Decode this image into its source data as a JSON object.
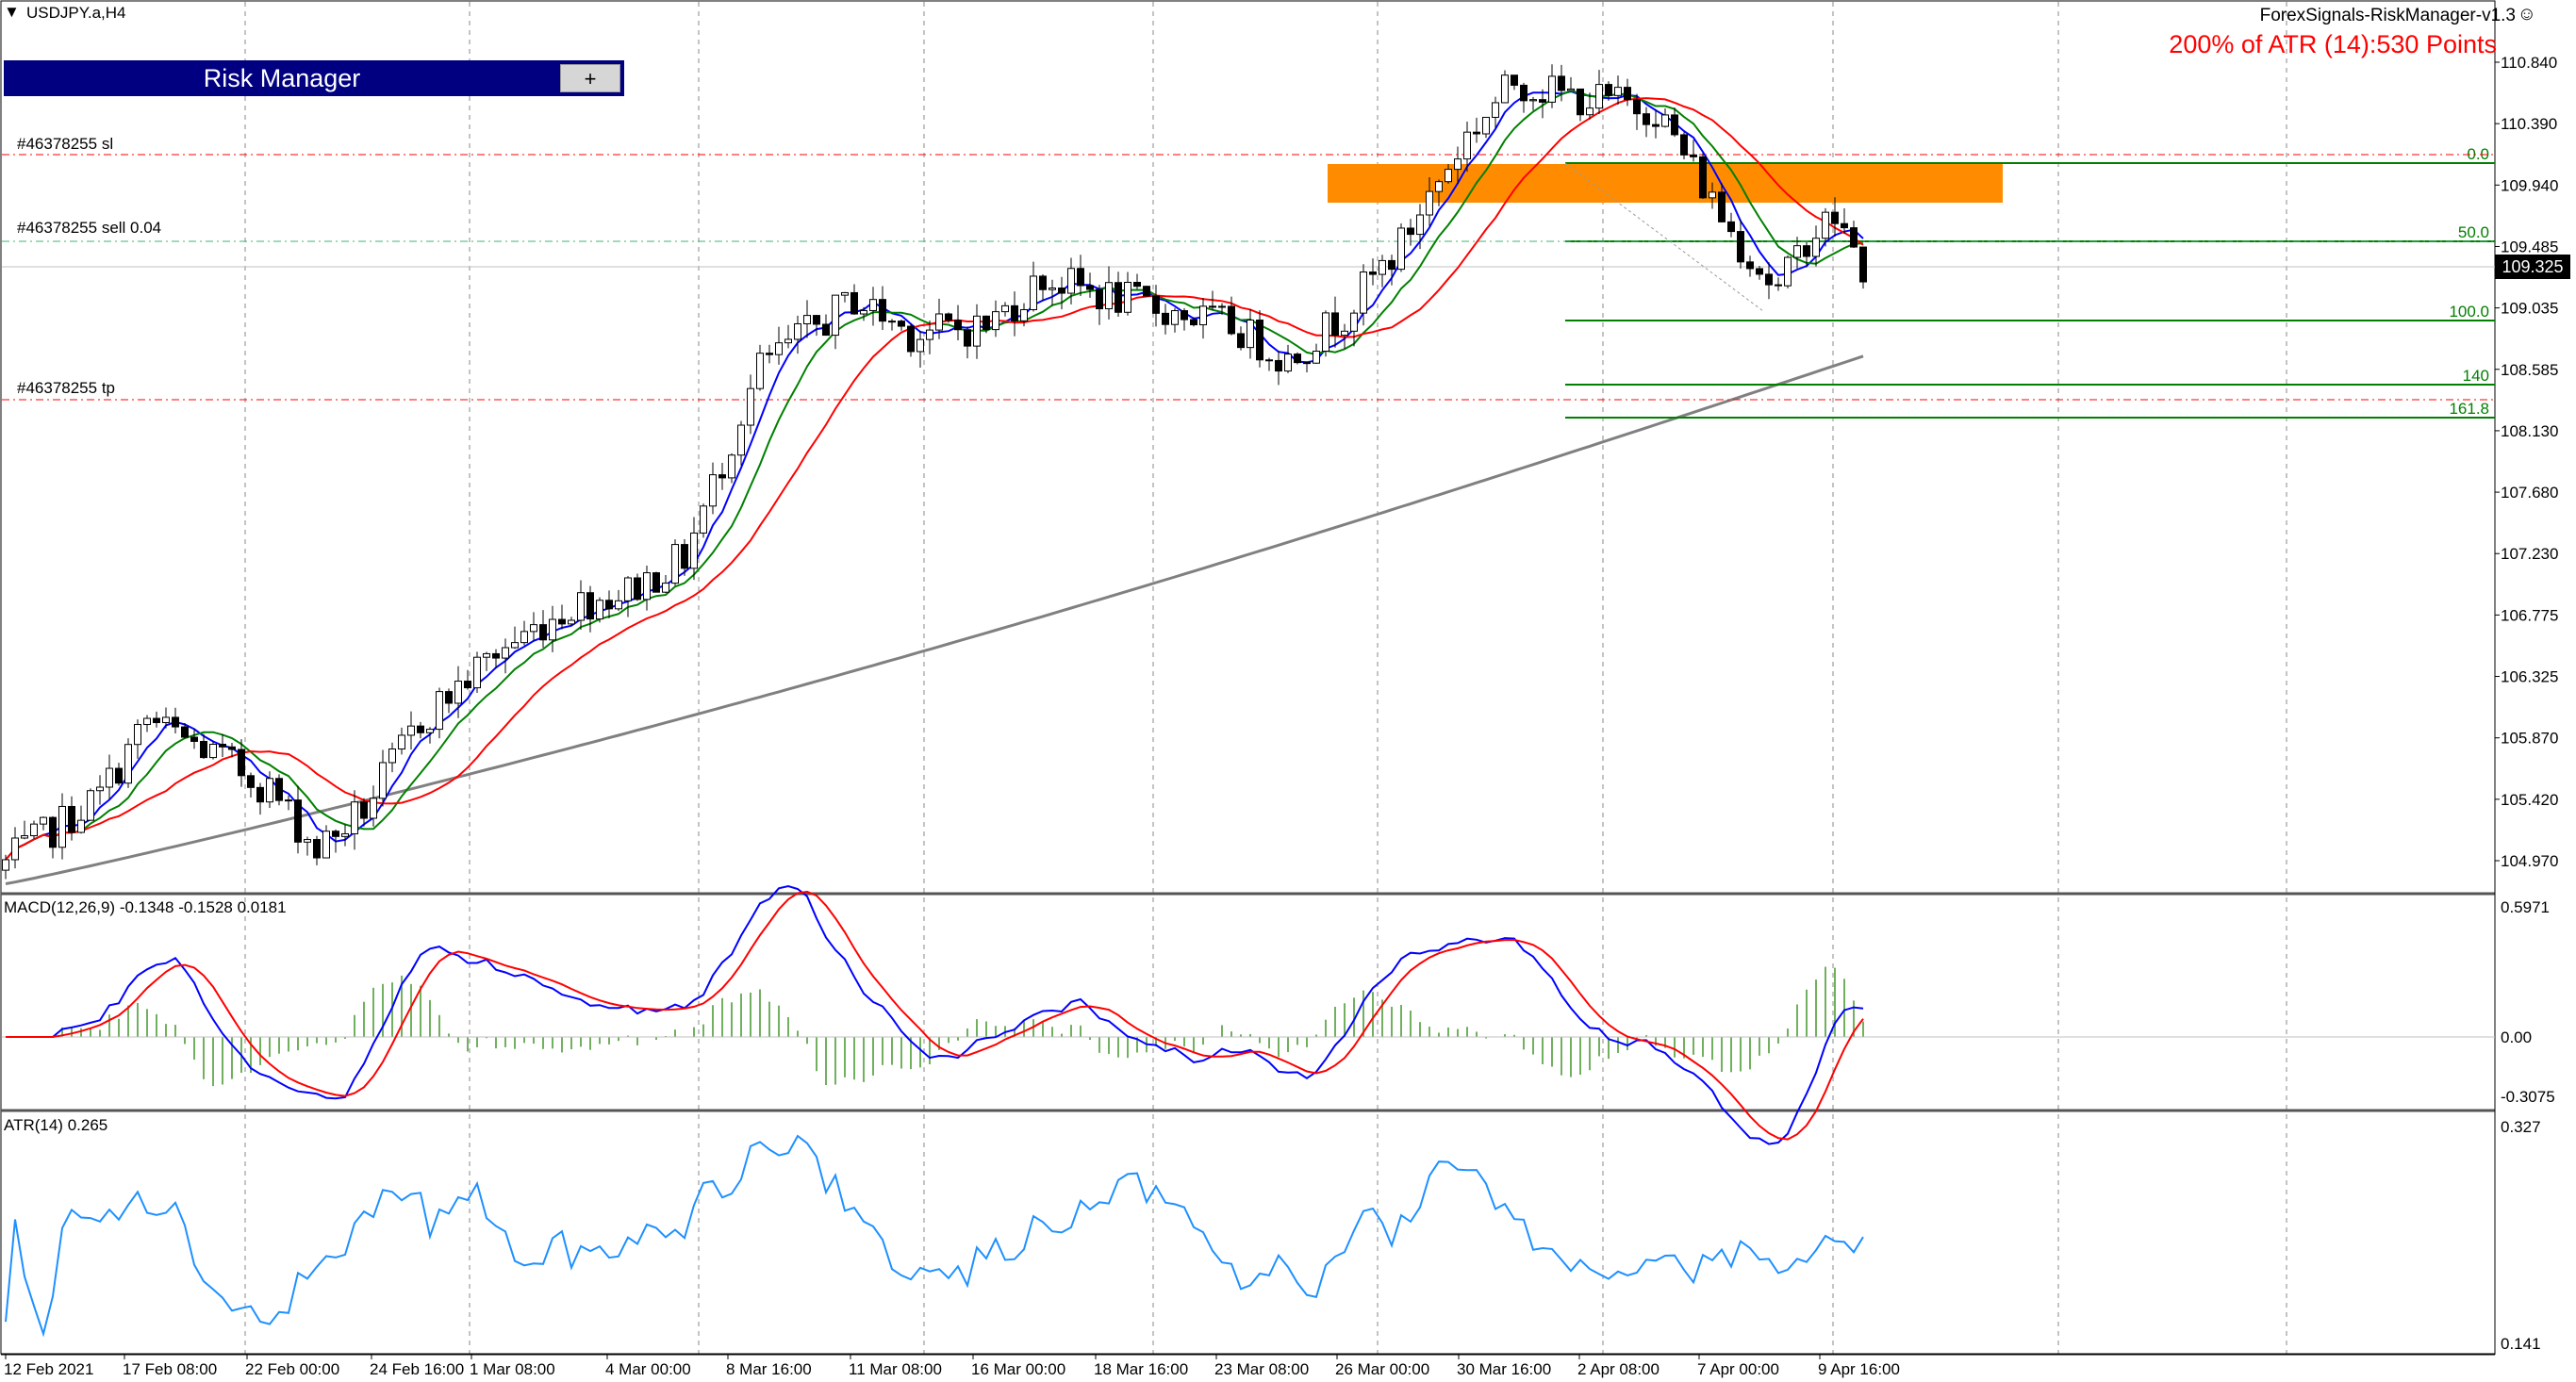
{
  "chart": {
    "symbol_timeframe": "USDJPY.a,H4",
    "ea_name": "ForexSignals-RiskManager-v1.3",
    "ea_face": "☺",
    "atr_points_text": "200% of ATR (14):530 Points",
    "risk_manager": {
      "title": "Risk Manager",
      "plus_label": "+"
    },
    "trade_labels": {
      "sl": "#46378255 sl",
      "sell": "#46378255 sell 0.04",
      "tp": "#46378255 tp"
    },
    "current_price": "109.325",
    "price_axis_labels": [
      "110.840",
      "110.390",
      "109.940",
      "109.485",
      "109.035",
      "108.585",
      "108.130",
      "107.680",
      "107.230",
      "106.775",
      "106.325",
      "105.870",
      "105.420",
      "104.970"
    ],
    "fib_labels": [
      "0.0",
      "50.0",
      "100.0",
      "140",
      "161.8"
    ],
    "macd": {
      "label": "MACD(12,26,9) -0.1348 -0.1528 0.0181",
      "axis": [
        "0.5971",
        "0.00",
        "-0.3075"
      ]
    },
    "atr": {
      "label": "ATR(14) 0.265",
      "axis": [
        "0.327",
        "0.141"
      ]
    },
    "time_labels": [
      "12 Feb 2021",
      "17 Feb 08:00",
      "22 Feb 00:00",
      "24 Feb 16:00",
      "1 Mar 08:00",
      "4 Mar 00:00",
      "8 Mar 16:00",
      "11 Mar 08:00",
      "16 Mar 00:00",
      "18 Mar 16:00",
      "23 Mar 08:00",
      "26 Mar 00:00",
      "30 Mar 16:00",
      "2 Apr 08:00",
      "7 Apr 00:00",
      "9 Apr 16:00"
    ],
    "colors": {
      "bull": "#ffffff",
      "bear": "#000000",
      "wick": "#000000",
      "ma_fast": "#0000ff",
      "ma_mid": "#008000",
      "ma_slow": "#ff0000",
      "ma_long": "#808080",
      "zone": "#ff8c00",
      "fib": "#008000",
      "sltp": "#ff0000",
      "macd_main": "#0000ff",
      "macd_signal": "#ff0000",
      "macd_hist": "#71b05f",
      "atr_line": "#1e90ff"
    }
  }
}
